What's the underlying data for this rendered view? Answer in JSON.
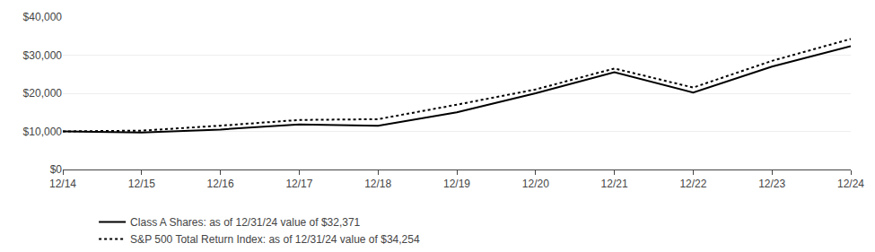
{
  "chart_data": {
    "type": "line",
    "categories": [
      "12/14",
      "12/15",
      "12/16",
      "12/17",
      "12/18",
      "12/19",
      "12/20",
      "12/21",
      "12/22",
      "12/23",
      "12/24"
    ],
    "series": [
      {
        "name": "Class A Shares: as of 12/31/24 value of $32,371",
        "color": "#000000",
        "line_style": "solid",
        "values": [
          10000,
          9700,
          10500,
          11800,
          11500,
          15000,
          20000,
          25500,
          20200,
          27000,
          32371
        ]
      },
      {
        "name": "S&P 500 Total Return Index: as of 12/31/24 value of $34,254",
        "color": "#000000",
        "line_style": "dotted",
        "values": [
          10000,
          10200,
          11500,
          13000,
          13200,
          17000,
          21000,
          26500,
          21500,
          28500,
          34254
        ]
      }
    ],
    "ylim": [
      0,
      40000
    ],
    "yticks": [
      {
        "value": 0,
        "label": "$0"
      },
      {
        "value": 10000,
        "label": "$10,000"
      },
      {
        "value": 20000,
        "label": "$20,000"
      },
      {
        "value": 30000,
        "label": "$30,000"
      },
      {
        "value": 40000,
        "label": "$40,000"
      }
    ],
    "grid": true,
    "legend": "bottom"
  }
}
